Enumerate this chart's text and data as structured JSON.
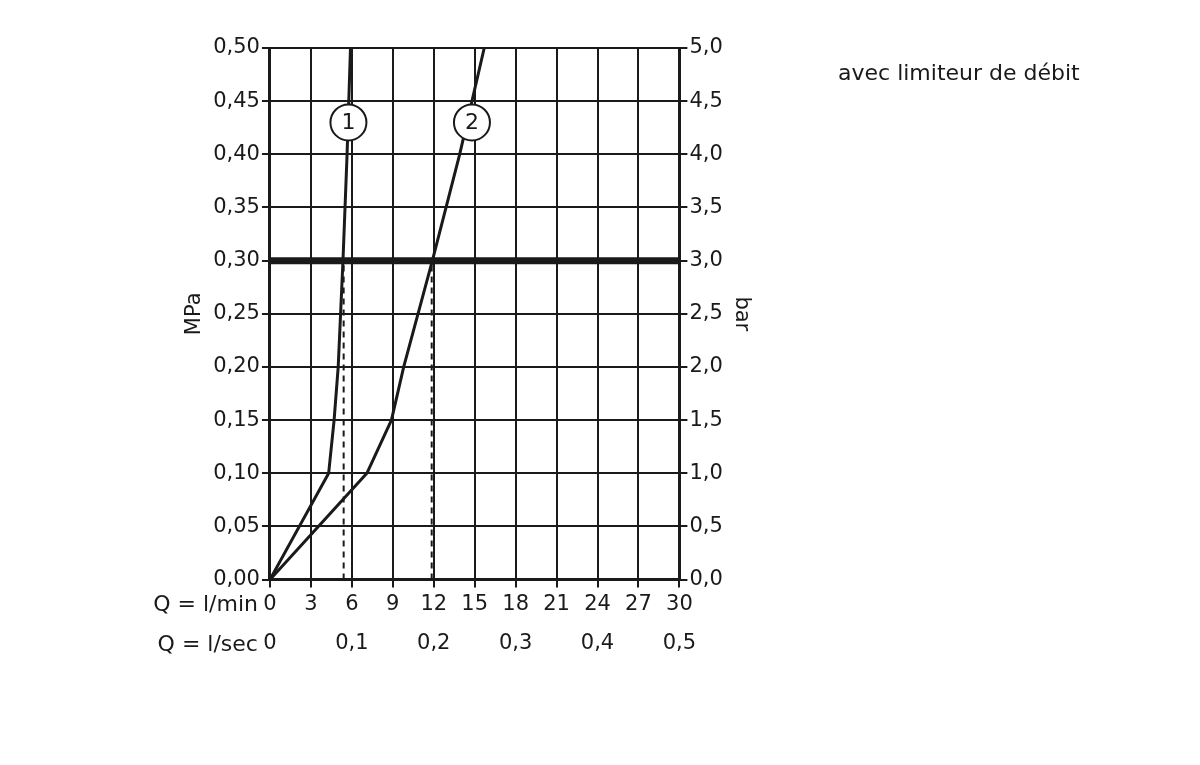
{
  "chart_data": {
    "type": "line",
    "xlabel": "Q = l/min",
    "ylabel": "MPa",
    "y2label": "bar",
    "x2label": "Q = l/sec",
    "xlim": [
      0,
      30
    ],
    "xticks": [
      0,
      3,
      6,
      9,
      12,
      15,
      18,
      21,
      24,
      27,
      30
    ],
    "x2lim": [
      0,
      0.5
    ],
    "x2ticks": [
      {
        "value": 0,
        "label": "0"
      },
      {
        "value": 0.1,
        "label": "0,1"
      },
      {
        "value": 0.2,
        "label": "0,2"
      },
      {
        "value": 0.3,
        "label": "0,3"
      },
      {
        "value": 0.4,
        "label": "0,4"
      },
      {
        "value": 0.5,
        "label": "0,5"
      }
    ],
    "ylim": [
      0,
      0.5
    ],
    "yticks": [
      {
        "value": 0,
        "label": "0,00"
      },
      {
        "value": 0.05,
        "label": "0,05"
      },
      {
        "value": 0.1,
        "label": "0,10"
      },
      {
        "value": 0.15,
        "label": "0,15"
      },
      {
        "value": 0.2,
        "label": "0,20"
      },
      {
        "value": 0.25,
        "label": "0,25"
      },
      {
        "value": 0.3,
        "label": "0,30"
      },
      {
        "value": 0.35,
        "label": "0,35"
      },
      {
        "value": 0.4,
        "label": "0,40"
      },
      {
        "value": 0.45,
        "label": "0,45"
      },
      {
        "value": 0.5,
        "label": "0,50"
      }
    ],
    "y2lim": [
      0,
      5
    ],
    "y2ticks": [
      {
        "value": 0,
        "label": "0,0"
      },
      {
        "value": 0.5,
        "label": "0,5"
      },
      {
        "value": 1,
        "label": "1,0"
      },
      {
        "value": 1.5,
        "label": "1,5"
      },
      {
        "value": 2,
        "label": "2,0"
      },
      {
        "value": 2.5,
        "label": "2,5"
      },
      {
        "value": 3,
        "label": "3,0"
      },
      {
        "value": 3.5,
        "label": "3,5"
      },
      {
        "value": 4,
        "label": "4,0"
      },
      {
        "value": 4.5,
        "label": "4,5"
      },
      {
        "value": 5,
        "label": "5,0"
      }
    ],
    "grid": true,
    "legend": false,
    "marker": "none",
    "series": [
      {
        "color": "#1a1a1a",
        "x": [
          0,
          4.3,
          4.7,
          5.0,
          5.35,
          5.65,
          5.9
        ],
        "values": [
          0,
          0.1,
          0.15,
          0.2,
          0.3,
          0.4,
          0.5
        ]
      },
      {
        "color": "#1a1a1a",
        "x": [
          0,
          7.1,
          8.9,
          9.8,
          11.9,
          13.9,
          15.7
        ],
        "values": [
          0,
          0.1,
          0.15,
          0.2,
          0.3,
          0.4,
          0.5
        ]
      },
      {
        "color": "#1a1a1a",
        "line_style": "dashed",
        "x": [
          5.4,
          5.4
        ],
        "values": [
          0,
          0.3
        ]
      },
      {
        "color": "#1a1a1a",
        "line_style": "dashed",
        "x": [
          11.85,
          11.85
        ],
        "values": [
          0,
          0.3
        ]
      }
    ],
    "ref_lines": [
      {
        "axis": "y",
        "value": 0.3,
        "color": "#1a1a1a"
      }
    ],
    "annotations": [
      {
        "text": "1",
        "x": 5.75,
        "y": 0.43
      },
      {
        "text": "2",
        "x": 14.8,
        "y": 0.43
      },
      "avec limiteur de débit"
    ]
  }
}
